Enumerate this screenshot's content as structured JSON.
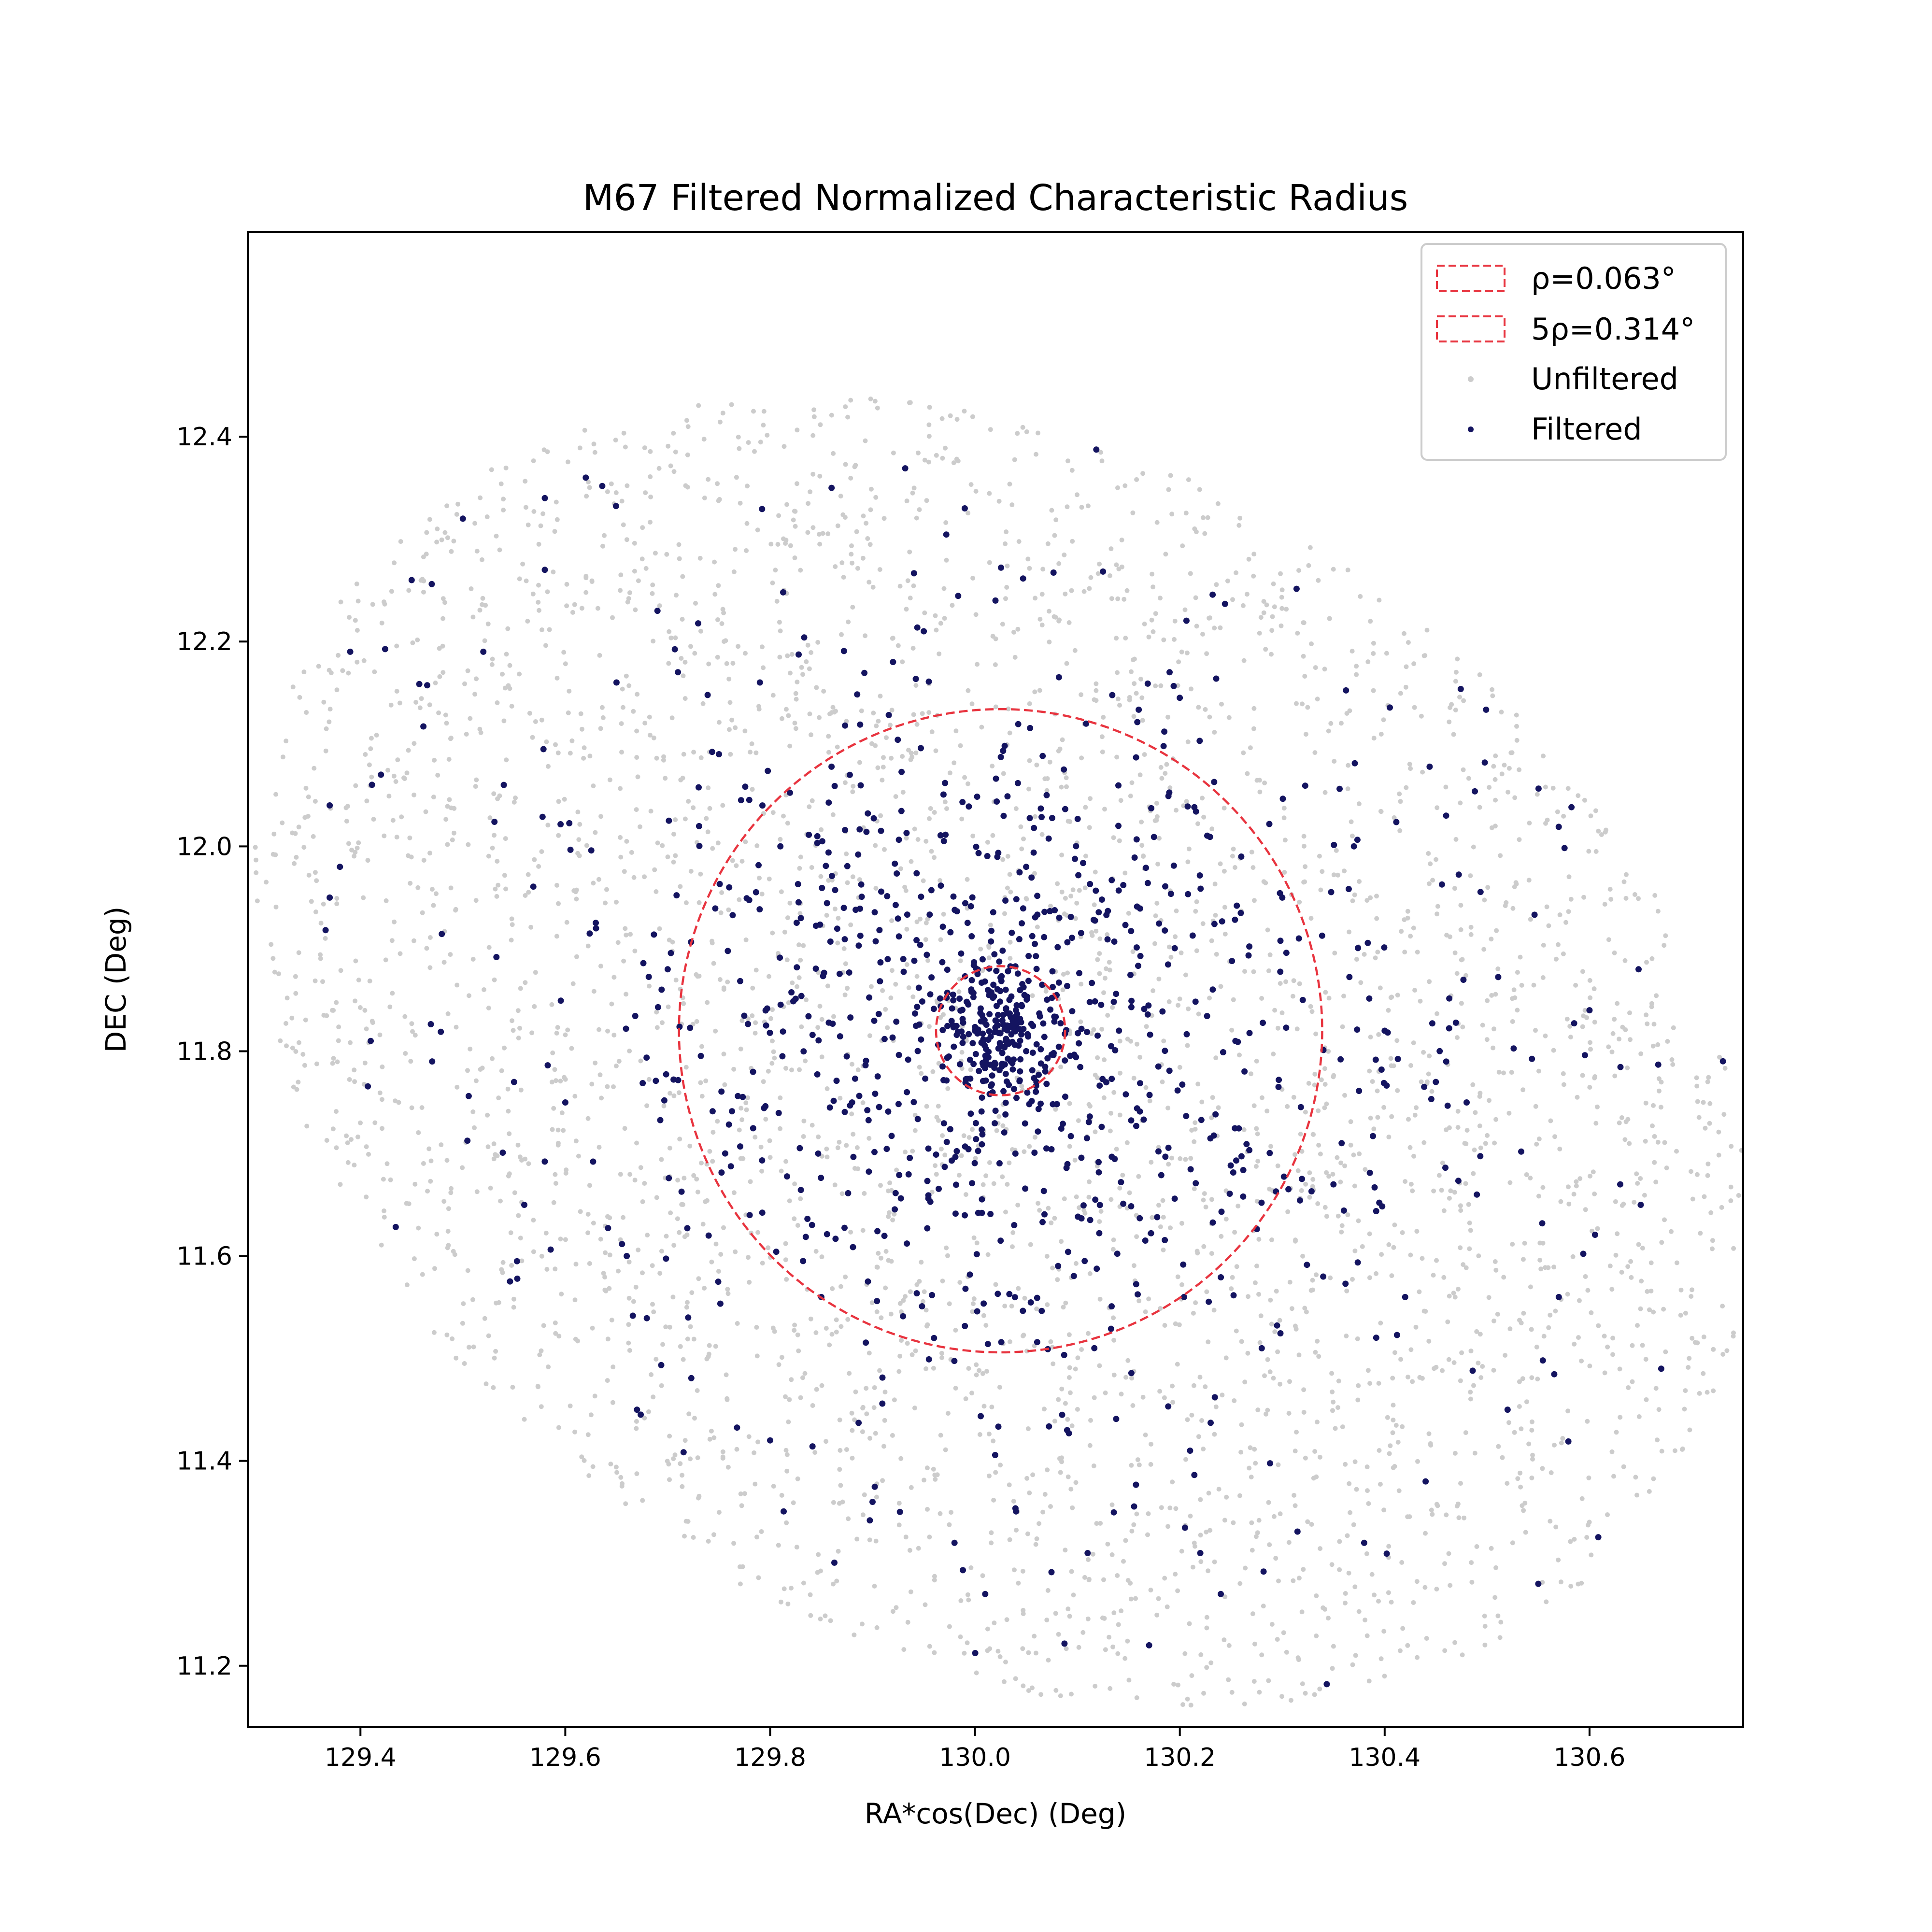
{
  "chart_data": {
    "type": "scatter",
    "title": "M67 Filtered Normalized Characteristic Radius",
    "xlabel": "RA*cos(Dec) (Deg)",
    "ylabel": "DEC (Deg)",
    "xlim": [
      129.29,
      130.75
    ],
    "ylim": [
      11.14,
      12.6
    ],
    "xticks": [
      "129.4",
      "129.6",
      "129.8",
      "130.0",
      "130.2",
      "130.4",
      "130.6"
    ],
    "yticks": [
      "11.2",
      "11.4",
      "11.6",
      "11.8",
      "12.0",
      "12.2",
      "12.4"
    ],
    "legend_position": "top-right",
    "center": [
      130.025,
      11.82
    ],
    "circles": [
      {
        "name": "ρ=0.063°",
        "radius_deg": 0.063,
        "color": "#e8343f",
        "style": "dashed"
      },
      {
        "name": "5ρ=0.314°",
        "radius_deg": 0.314,
        "color": "#e8343f",
        "style": "dashed"
      }
    ],
    "series": [
      {
        "name": "Unfiltered",
        "color": "#cccccc",
        "distribution": {
          "center": [
            130.025,
            11.8
          ],
          "semi_major_deg": 0.78,
          "semi_minor_deg": 0.58,
          "angle_deg": -32,
          "count": 3600
        }
      },
      {
        "name": "Filtered",
        "color": "#141460",
        "distribution": {
          "center": [
            130.025,
            11.82
          ],
          "core_deg": 0.063,
          "count": 1050
        },
        "points": [
          [
            129.37,
            12.04
          ],
          [
            129.38,
            11.98
          ],
          [
            129.37,
            11.95
          ],
          [
            129.39,
            12.19
          ],
          [
            129.42,
            12.07
          ],
          [
            129.41,
            11.81
          ],
          [
            129.45,
            12.26
          ],
          [
            129.47,
            11.79
          ],
          [
            129.5,
            12.32
          ],
          [
            129.52,
            12.19
          ],
          [
            129.54,
            12.06
          ],
          [
            129.55,
            11.77
          ],
          [
            129.56,
            11.65
          ],
          [
            129.58,
            12.34
          ],
          [
            129.58,
            12.27
          ],
          [
            129.6,
            11.75
          ],
          [
            129.62,
            12.36
          ],
          [
            129.63,
            11.92
          ],
          [
            129.65,
            12.16
          ],
          [
            129.66,
            11.6
          ],
          [
            129.67,
            11.45
          ],
          [
            129.69,
            12.23
          ],
          [
            129.7,
            11.88
          ],
          [
            129.71,
            12.17
          ],
          [
            129.72,
            11.54
          ],
          [
            129.74,
            11.62
          ],
          [
            129.75,
            12.09
          ],
          [
            129.76,
            11.96
          ],
          [
            129.78,
            11.64
          ],
          [
            129.79,
            12.16
          ],
          [
            129.8,
            11.42
          ],
          [
            129.81,
            12.0
          ],
          [
            129.83,
            11.93
          ],
          [
            129.85,
            11.56
          ],
          [
            129.86,
            12.35
          ],
          [
            129.88,
            11.75
          ],
          [
            129.9,
            11.36
          ],
          [
            129.92,
            12.18
          ],
          [
            129.93,
            11.89
          ],
          [
            129.95,
            12.21
          ],
          [
            129.96,
            11.52
          ],
          [
            129.98,
            11.32
          ],
          [
            129.99,
            12.33
          ],
          [
            130.01,
            11.27
          ],
          [
            130.02,
            12.24
          ],
          [
            130.05,
            11.98
          ],
          [
            130.07,
            12.05
          ],
          [
            130.09,
            11.43
          ],
          [
            130.11,
            11.31
          ],
          [
            130.14,
            12.02
          ],
          [
            130.17,
            11.22
          ],
          [
            130.19,
            12.17
          ],
          [
            130.21,
            11.41
          ],
          [
            130.22,
            11.31
          ],
          [
            130.24,
            11.27
          ],
          [
            130.26,
            11.99
          ],
          [
            130.28,
            11.51
          ],
          [
            130.3,
            11.95
          ],
          [
            130.32,
            11.85
          ],
          [
            130.34,
            11.58
          ],
          [
            130.35,
            11.67
          ],
          [
            130.37,
            12.0
          ],
          [
            130.38,
            11.32
          ],
          [
            130.4,
            11.82
          ],
          [
            130.42,
            11.56
          ],
          [
            130.44,
            11.38
          ],
          [
            130.45,
            11.77
          ],
          [
            130.46,
            12.03
          ],
          [
            130.48,
            11.75
          ],
          [
            130.49,
            11.66
          ],
          [
            130.52,
            11.45
          ],
          [
            130.55,
            11.28
          ],
          [
            130.57,
            11.56
          ],
          [
            130.6,
            11.84
          ],
          [
            130.63,
            11.67
          ],
          [
            130.65,
            11.65
          ],
          [
            130.67,
            11.49
          ],
          [
            130.02,
            11.83
          ],
          [
            130.03,
            11.81
          ],
          [
            130.04,
            11.84
          ],
          [
            130.01,
            11.79
          ],
          [
            130.05,
            11.8
          ],
          [
            130.03,
            11.86
          ],
          [
            130.0,
            11.82
          ],
          [
            130.06,
            11.77
          ]
        ]
      }
    ]
  }
}
